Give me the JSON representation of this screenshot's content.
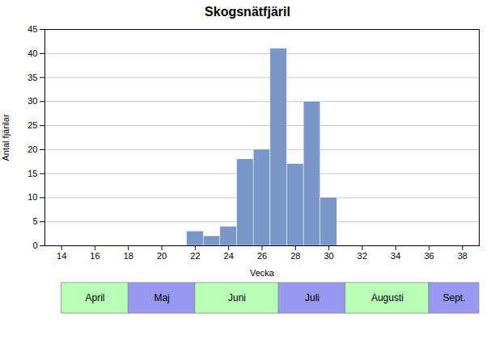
{
  "chart_data": {
    "type": "bar",
    "title": "Skogsnätfjäril",
    "xlabel": "Vecka",
    "ylabel": "Antal fjärilar",
    "x": [
      22,
      23,
      24,
      25,
      26,
      27,
      28,
      29,
      30
    ],
    "values": [
      3,
      2,
      4,
      18,
      20,
      41,
      17,
      30,
      10
    ],
    "color": "#7B96C8",
    "xlim": [
      13,
      39
    ],
    "xticks": [
      14,
      16,
      18,
      20,
      22,
      24,
      26,
      28,
      30,
      32,
      34,
      36,
      38
    ],
    "ylim": [
      0,
      45
    ],
    "yticks": [
      0,
      5,
      10,
      15,
      20,
      25,
      30,
      35,
      40,
      45
    ],
    "grid": true,
    "annotations": [
      {
        "text": "April",
        "x_start": 14,
        "x_end": 18,
        "color": "#b8ffb8"
      },
      {
        "text": "Maj",
        "x_start": 18,
        "x_end": 22,
        "color": "#9898ee"
      },
      {
        "text": "Juni",
        "x_start": 22,
        "x_end": 27,
        "color": "#b8ffb8"
      },
      {
        "text": "Juli",
        "x_start": 27,
        "x_end": 31,
        "color": "#9898ee"
      },
      {
        "text": "Augusti",
        "x_start": 31,
        "x_end": 36,
        "color": "#b8ffb8"
      },
      {
        "text": "Sept.",
        "x_start": 36,
        "x_end": 39,
        "color": "#9898ee"
      }
    ]
  }
}
